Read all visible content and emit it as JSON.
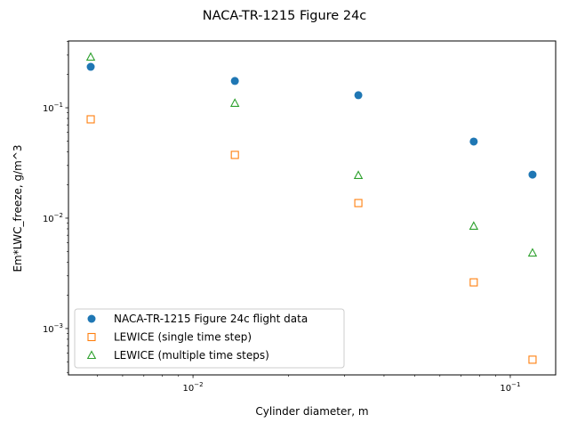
{
  "chart_data": {
    "type": "scatter",
    "title": "NACA-TR-1215 Figure 24c",
    "xlabel": "Cylinder diameter, m",
    "ylabel": "Em*LWC_freeze, g/m^3",
    "xscale": "log",
    "yscale": "log",
    "xlim": [
      0.00405,
      0.139
    ],
    "ylim": [
      0.00038,
      0.403
    ],
    "x_ticks": [
      {
        "value": 0.01,
        "base": "10",
        "exp": "−2"
      },
      {
        "value": 0.1,
        "base": "10",
        "exp": "−1"
      }
    ],
    "y_ticks": [
      {
        "value": 0.001,
        "base": "10",
        "exp": "−3"
      },
      {
        "value": 0.01,
        "base": "10",
        "exp": "−2"
      },
      {
        "value": 0.1,
        "base": "10",
        "exp": "−1"
      }
    ],
    "grid": false,
    "legend_position": "lower-left",
    "series": [
      {
        "name": "NACA-TR-1215 Figure 24c flight data",
        "marker": "circle-filled",
        "color": "#1f77b4",
        "x": [
          0.00476,
          0.01355,
          0.0332,
          0.0767,
          0.1175
        ],
        "y": [
          0.235,
          0.175,
          0.13,
          0.0494,
          0.0248
        ]
      },
      {
        "name": "LEWICE (single time step)",
        "marker": "square-open",
        "color": "#ff7f0e",
        "x": [
          0.00476,
          0.01355,
          0.0332,
          0.0767,
          0.1175
        ],
        "y": [
          0.0786,
          0.0374,
          0.0137,
          0.00262,
          0.000522
        ]
      },
      {
        "name": "LEWICE (multiple time steps)",
        "marker": "triangle-open",
        "color": "#2ca02c",
        "x": [
          0.00476,
          0.01355,
          0.0332,
          0.0767,
          0.1175
        ],
        "y": [
          0.288,
          0.11,
          0.0244,
          0.00846,
          0.00484
        ]
      }
    ]
  }
}
